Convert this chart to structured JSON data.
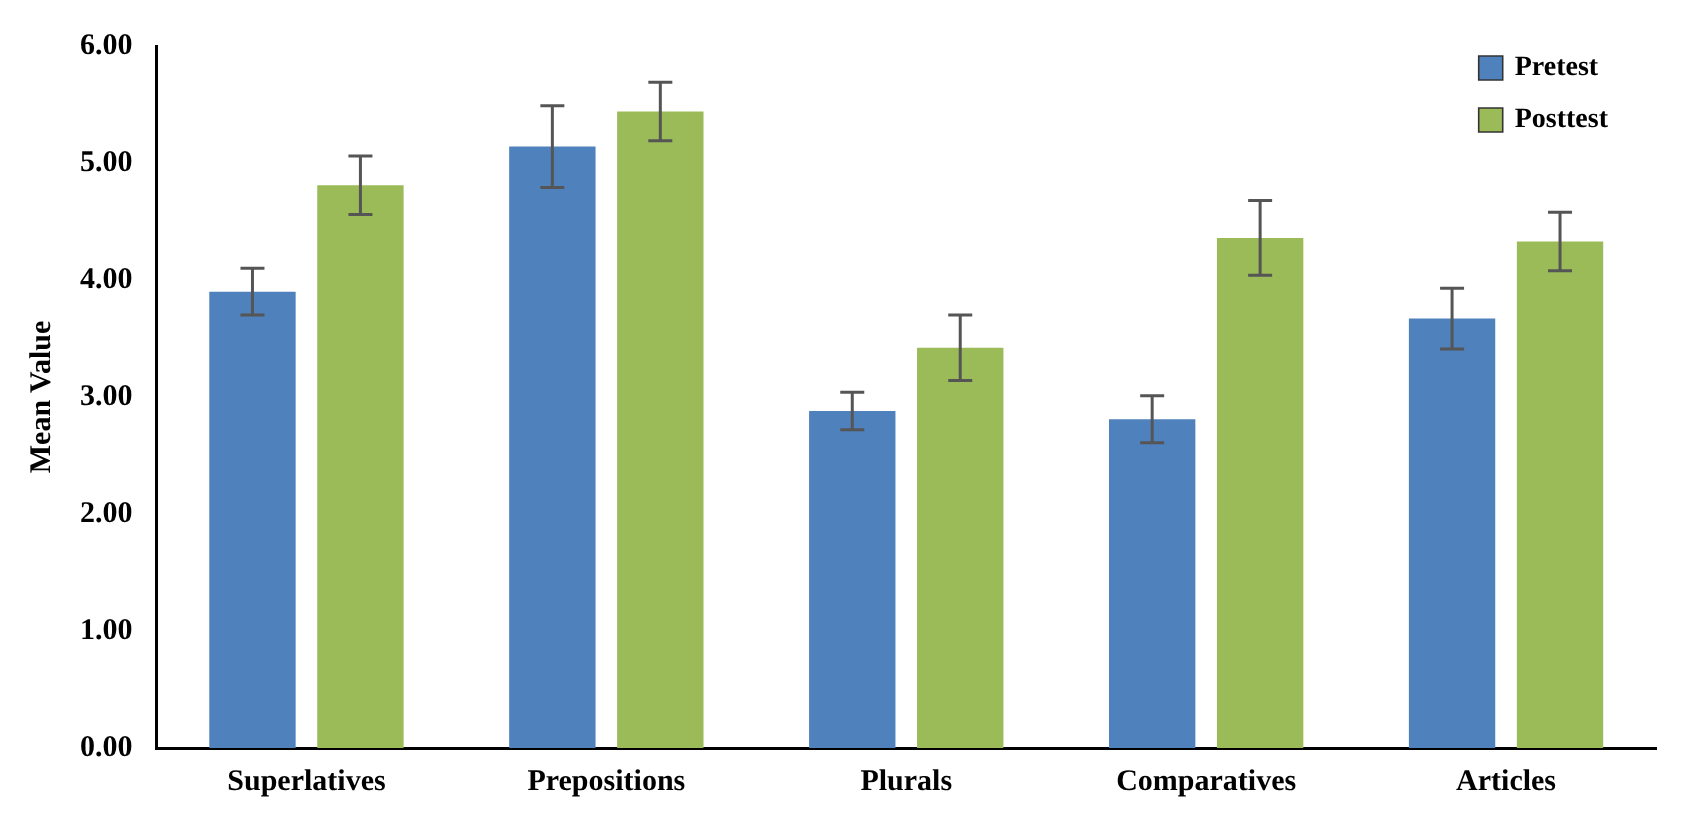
{
  "chart_data": {
    "type": "bar",
    "ylabel": "Mean Value",
    "categories": [
      "Superlatives",
      "Prepositions",
      "Plurals",
      "Comparatives",
      "Articles"
    ],
    "series": [
      {
        "name": "Pretest",
        "color": "#4f81bd",
        "values": [
          3.9,
          5.14,
          2.88,
          2.81,
          3.67
        ],
        "errors": [
          0.2,
          0.35,
          0.16,
          0.2,
          0.26
        ]
      },
      {
        "name": "Posttest",
        "color": "#9bbb59",
        "values": [
          4.81,
          5.44,
          3.42,
          4.36,
          4.33
        ],
        "errors": [
          0.25,
          0.25,
          0.28,
          0.32,
          0.25
        ]
      }
    ],
    "ylim": [
      0,
      6
    ],
    "yticks": [
      {
        "value": 0,
        "label": "0.00"
      },
      {
        "value": 1,
        "label": "1.00"
      },
      {
        "value": 2,
        "label": "2.00"
      },
      {
        "value": 3,
        "label": "3.00"
      },
      {
        "value": 4,
        "label": "4.00"
      },
      {
        "value": 5,
        "label": "5.00"
      },
      {
        "value": 6,
        "label": "6.00"
      }
    ],
    "grid": false,
    "legend": "top right"
  }
}
